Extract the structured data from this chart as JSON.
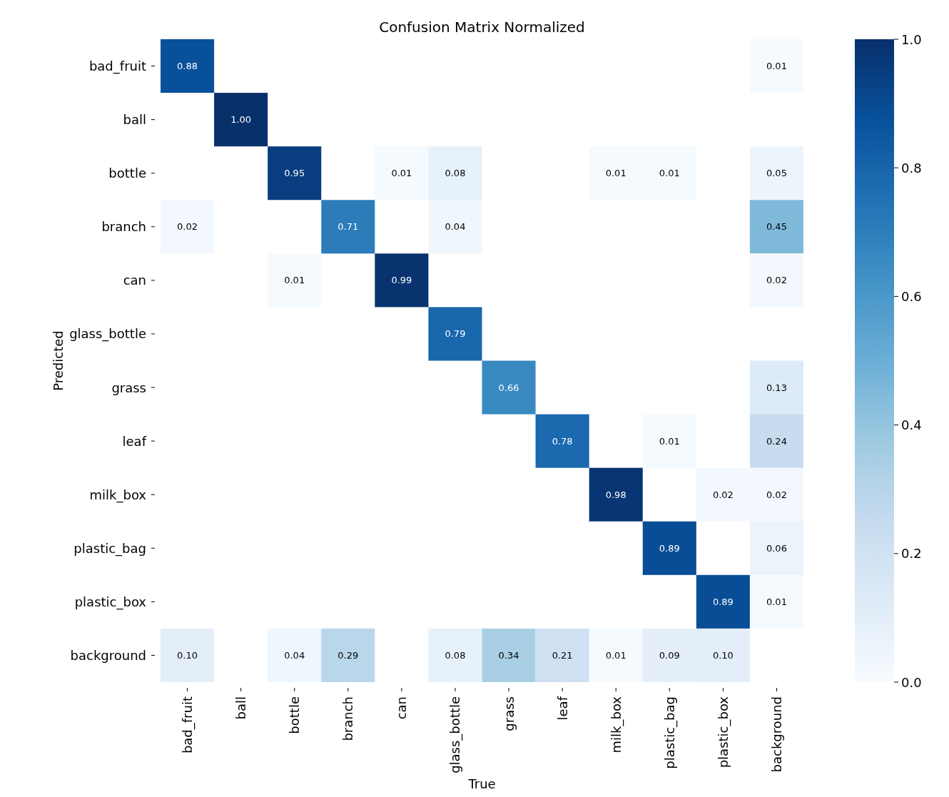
{
  "chart_data": {
    "type": "heatmap",
    "title": "Confusion Matrix Normalized",
    "xlabel": "True",
    "ylabel": "Predicted",
    "categories": [
      "bad_fruit",
      "ball",
      "bottle",
      "branch",
      "can",
      "glass_bottle",
      "grass",
      "leaf",
      "milk_box",
      "plastic_bag",
      "plastic_box",
      "background"
    ],
    "y_categories": [
      "bad_fruit",
      "ball",
      "bottle",
      "branch",
      "can",
      "glass_bottle",
      "grass",
      "leaf",
      "milk_box",
      "plastic_bag",
      "plastic_box",
      "background"
    ],
    "cells": [
      [
        0.88,
        null,
        null,
        null,
        null,
        null,
        null,
        null,
        null,
        null,
        null,
        0.01
      ],
      [
        null,
        1.0,
        null,
        null,
        null,
        null,
        null,
        null,
        null,
        null,
        null,
        null
      ],
      [
        null,
        null,
        0.95,
        null,
        0.01,
        0.08,
        null,
        null,
        0.01,
        0.01,
        null,
        0.05
      ],
      [
        0.02,
        null,
        null,
        0.71,
        null,
        0.04,
        null,
        null,
        null,
        null,
        null,
        0.45
      ],
      [
        null,
        null,
        0.01,
        null,
        0.99,
        null,
        null,
        null,
        null,
        null,
        null,
        0.02
      ],
      [
        null,
        null,
        null,
        null,
        null,
        0.79,
        null,
        null,
        null,
        null,
        null,
        null
      ],
      [
        null,
        null,
        null,
        null,
        null,
        null,
        0.66,
        null,
        null,
        null,
        null,
        0.13
      ],
      [
        null,
        null,
        null,
        null,
        null,
        null,
        null,
        0.78,
        null,
        0.01,
        null,
        0.24
      ],
      [
        null,
        null,
        null,
        null,
        null,
        null,
        null,
        null,
        0.98,
        null,
        0.02,
        0.02
      ],
      [
        null,
        null,
        null,
        null,
        null,
        null,
        null,
        null,
        null,
        0.89,
        null,
        0.06
      ],
      [
        null,
        null,
        null,
        null,
        null,
        null,
        null,
        null,
        null,
        null,
        0.89,
        0.01
      ],
      [
        0.1,
        null,
        0.04,
        0.29,
        null,
        0.08,
        0.34,
        0.21,
        0.01,
        0.09,
        0.1,
        null
      ]
    ],
    "cell_labels": [
      [
        "0.88",
        null,
        null,
        null,
        null,
        null,
        null,
        null,
        null,
        null,
        null,
        "0.01"
      ],
      [
        null,
        "1.00",
        null,
        null,
        null,
        null,
        null,
        null,
        null,
        null,
        null,
        null
      ],
      [
        null,
        null,
        "0.95",
        null,
        "0.01",
        "0.08",
        null,
        null,
        "0.01",
        "0.01",
        null,
        "0.05"
      ],
      [
        "0.02",
        null,
        null,
        "0.71",
        null,
        "0.04",
        null,
        null,
        null,
        null,
        null,
        "0.45"
      ],
      [
        null,
        null,
        "0.01",
        null,
        "0.99",
        null,
        null,
        null,
        null,
        null,
        null,
        "0.02"
      ],
      [
        null,
        null,
        null,
        null,
        null,
        "0.79",
        null,
        null,
        null,
        null,
        null,
        null
      ],
      [
        null,
        null,
        null,
        null,
        null,
        null,
        "0.66",
        null,
        null,
        null,
        null,
        "0.13"
      ],
      [
        null,
        null,
        null,
        null,
        null,
        null,
        null,
        "0.78",
        null,
        "0.01",
        null,
        "0.24"
      ],
      [
        null,
        null,
        null,
        null,
        null,
        null,
        null,
        null,
        "0.98",
        null,
        "0.02",
        "0.02"
      ],
      [
        null,
        null,
        null,
        null,
        null,
        null,
        null,
        null,
        null,
        "0.89",
        null,
        "0.06"
      ],
      [
        null,
        null,
        null,
        null,
        null,
        null,
        null,
        null,
        null,
        null,
        "0.89",
        "0.01"
      ],
      [
        "0.10",
        null,
        "0.04",
        "0.29",
        null,
        "0.08",
        "0.34",
        "0.21",
        "0.01",
        "0.09",
        "0.10",
        null
      ]
    ],
    "clim": [
      0,
      1
    ],
    "cticks": [
      {
        "value": 0,
        "label": "0.0"
      },
      0.2,
      0.4,
      0.6,
      0.8,
      {
        "value": 1,
        "label": "1.0"
      }
    ],
    "data_labels": true
  }
}
